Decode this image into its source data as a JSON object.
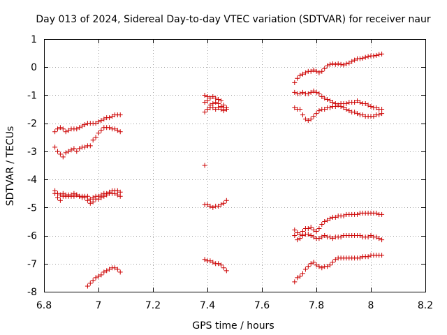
{
  "chart_data": {
    "type": "scatter",
    "title": "Day 013 of 2024, Sidereal Day-to-day VTEC variation (SDTVAR) for receiver naur",
    "xlabel": "GPS time / hours",
    "ylabel": "SDTVAR / TECUs",
    "xlim": [
      6.8,
      8.2
    ],
    "ylim": [
      -8,
      1
    ],
    "xticks": [
      6.8,
      7,
      7.2,
      7.4,
      7.6,
      7.8,
      8,
      8.2
    ],
    "xtick_labels": [
      "6.8",
      "7",
      "7.2",
      "7.4",
      "7.6",
      "7.8",
      "8",
      "8.2"
    ],
    "yticks": [
      -8,
      -7,
      -6,
      -5,
      -4,
      -3,
      -2,
      -1,
      0,
      1
    ],
    "ytick_labels": [
      "-8",
      "-7",
      "-6",
      "-5",
      "-4",
      "-3",
      "-2",
      "-1",
      "0",
      "1"
    ],
    "grid": true,
    "marker": "+",
    "color": "#cc0000",
    "series": [
      {
        "name": "s1",
        "x": [
          6.84,
          6.85,
          6.86,
          6.87,
          6.88,
          6.89,
          6.9,
          6.91,
          6.92,
          6.93,
          6.94,
          6.95,
          6.96,
          6.97,
          6.98,
          6.99,
          7.0,
          7.01,
          7.02,
          7.03,
          7.04,
          7.05,
          7.06,
          7.07,
          7.08
        ],
        "y": [
          -2.3,
          -2.2,
          -2.15,
          -2.2,
          -2.3,
          -2.25,
          -2.2,
          -2.2,
          -2.2,
          -2.15,
          -2.1,
          -2.05,
          -2.0,
          -2.0,
          -2.0,
          -2.0,
          -1.95,
          -1.9,
          -1.85,
          -1.8,
          -1.8,
          -1.75,
          -1.7,
          -1.7,
          -1.7
        ]
      },
      {
        "name": "s2",
        "x": [
          6.84,
          6.85,
          6.86,
          6.87,
          6.88,
          6.89,
          6.9,
          6.91,
          6.92,
          6.93,
          6.94,
          6.95,
          6.96,
          6.97,
          6.98,
          6.99,
          7.0,
          7.01,
          7.02,
          7.03,
          7.04,
          7.05,
          7.06,
          7.07,
          7.08
        ],
        "y": [
          -2.85,
          -3.0,
          -3.1,
          -3.2,
          -3.05,
          -3.0,
          -2.95,
          -2.9,
          -3.0,
          -2.9,
          -2.85,
          -2.85,
          -2.8,
          -2.8,
          -2.6,
          -2.5,
          -2.35,
          -2.25,
          -2.15,
          -2.15,
          -2.15,
          -2.2,
          -2.2,
          -2.25,
          -2.3
        ]
      },
      {
        "name": "s3",
        "x": [
          6.84,
          6.85,
          6.86,
          6.87,
          6.88,
          6.89,
          6.9,
          6.91,
          6.92,
          6.93,
          6.94,
          6.95,
          6.96,
          6.97,
          6.98,
          6.99,
          7.0,
          7.01,
          7.02,
          7.03,
          7.04,
          7.05,
          7.06,
          7.07,
          7.08
        ],
        "y": [
          -4.4,
          -4.5,
          -4.55,
          -4.5,
          -4.6,
          -4.55,
          -4.55,
          -4.5,
          -4.55,
          -4.6,
          -4.6,
          -4.65,
          -4.6,
          -4.7,
          -4.65,
          -4.6,
          -4.6,
          -4.55,
          -4.5,
          -4.5,
          -4.45,
          -4.4,
          -4.4,
          -4.4,
          -4.45
        ]
      },
      {
        "name": "s4",
        "x": [
          6.84,
          6.85,
          6.86,
          6.87,
          6.88,
          6.89,
          6.9,
          6.91,
          6.92,
          6.93,
          6.94,
          6.95,
          6.96,
          6.97,
          6.98,
          6.99,
          7.0,
          7.01,
          7.02,
          7.03,
          7.04,
          7.05,
          7.06,
          7.07,
          7.08
        ],
        "y": [
          -4.5,
          -4.65,
          -4.75,
          -4.6,
          -4.55,
          -4.6,
          -4.6,
          -4.6,
          -4.55,
          -4.6,
          -4.65,
          -4.6,
          -4.75,
          -4.85,
          -4.8,
          -4.7,
          -4.7,
          -4.65,
          -4.6,
          -4.55,
          -4.5,
          -4.5,
          -4.5,
          -4.55,
          -4.6
        ]
      },
      {
        "name": "s5",
        "x": [
          6.96,
          6.97,
          6.98,
          6.99,
          7.0,
          7.01,
          7.02,
          7.03,
          7.04,
          7.05,
          7.06,
          7.07,
          7.08
        ],
        "y": [
          -7.8,
          -7.7,
          -7.6,
          -7.5,
          -7.45,
          -7.4,
          -7.3,
          -7.25,
          -7.2,
          -7.15,
          -7.15,
          -7.2,
          -7.3
        ]
      },
      {
        "name": "s6",
        "x": [
          7.39,
          7.4,
          7.41,
          7.42,
          7.43,
          7.44,
          7.45,
          7.46,
          7.47
        ],
        "y": [
          -1.0,
          -1.05,
          -1.1,
          -1.05,
          -1.1,
          -1.15,
          -1.2,
          -1.35,
          -1.5
        ]
      },
      {
        "name": "s7",
        "x": [
          7.39,
          7.4,
          7.41,
          7.42,
          7.43,
          7.44,
          7.45,
          7.46,
          7.47
        ],
        "y": [
          -1.25,
          -1.2,
          -1.35,
          -1.3,
          -1.25,
          -1.3,
          -1.4,
          -1.45,
          -1.45
        ]
      },
      {
        "name": "s8",
        "x": [
          7.39,
          7.4,
          7.41,
          7.42,
          7.43,
          7.44,
          7.45,
          7.46,
          7.47
        ],
        "y": [
          -1.6,
          -1.5,
          -1.45,
          -1.45,
          -1.5,
          -1.45,
          -1.5,
          -1.55,
          -1.5
        ]
      },
      {
        "name": "s9",
        "x": [
          7.39
        ],
        "y": [
          -3.5
        ]
      },
      {
        "name": "s10",
        "x": [
          7.39,
          7.4,
          7.41,
          7.42,
          7.43,
          7.44,
          7.45,
          7.46,
          7.47
        ],
        "y": [
          -4.9,
          -4.9,
          -4.95,
          -5.0,
          -4.95,
          -4.95,
          -4.9,
          -4.85,
          -4.75
        ]
      },
      {
        "name": "s11",
        "x": [
          7.39,
          7.4,
          7.41,
          7.42,
          7.43,
          7.44,
          7.45,
          7.46,
          7.47
        ],
        "y": [
          -6.85,
          -6.9,
          -6.9,
          -6.95,
          -7.0,
          -7.0,
          -7.05,
          -7.15,
          -7.25
        ]
      },
      {
        "name": "s12",
        "x": [
          7.72,
          7.73,
          7.74,
          7.75,
          7.76,
          7.77,
          7.78,
          7.79,
          7.8,
          7.81,
          7.82,
          7.83,
          7.84,
          7.85,
          7.86,
          7.87,
          7.88,
          7.89,
          7.9,
          7.91,
          7.92,
          7.93,
          7.94,
          7.95,
          7.96,
          7.97,
          7.98,
          7.99,
          8.0,
          8.01,
          8.02,
          8.03,
          8.04
        ],
        "y": [
          -0.55,
          -0.4,
          -0.3,
          -0.25,
          -0.2,
          -0.15,
          -0.15,
          -0.1,
          -0.15,
          -0.2,
          -0.15,
          -0.05,
          0.05,
          0.1,
          0.12,
          0.1,
          0.12,
          0.1,
          0.08,
          0.12,
          0.15,
          0.2,
          0.25,
          0.3,
          0.3,
          0.32,
          0.35,
          0.38,
          0.4,
          0.4,
          0.42,
          0.45,
          0.47
        ]
      },
      {
        "name": "s13",
        "x": [
          7.72,
          7.73,
          7.74,
          7.75,
          7.76,
          7.77,
          7.78,
          7.79,
          7.8,
          7.81,
          7.82,
          7.83,
          7.84,
          7.85,
          7.86,
          7.87,
          7.88,
          7.89,
          7.9,
          7.91,
          7.92,
          7.93,
          7.94,
          7.95,
          7.96,
          7.97,
          7.98,
          7.99,
          8.0,
          8.01,
          8.02,
          8.03,
          8.04
        ],
        "y": [
          -0.9,
          -0.95,
          -0.95,
          -0.9,
          -0.95,
          -0.95,
          -0.9,
          -0.85,
          -0.9,
          -0.95,
          -1.05,
          -1.1,
          -1.15,
          -1.2,
          -1.25,
          -1.3,
          -1.35,
          -1.4,
          -1.45,
          -1.5,
          -1.55,
          -1.6,
          -1.6,
          -1.65,
          -1.7,
          -1.7,
          -1.75,
          -1.75,
          -1.75,
          -1.75,
          -1.7,
          -1.7,
          -1.65
        ]
      },
      {
        "name": "s14",
        "x": [
          7.72,
          7.73,
          7.74,
          7.75,
          7.76,
          7.77,
          7.78,
          7.79,
          7.8,
          7.81,
          7.82,
          7.83,
          7.84,
          7.85,
          7.86,
          7.87,
          7.88,
          7.89,
          7.9,
          7.91,
          7.92,
          7.93,
          7.94,
          7.95,
          7.96,
          7.97,
          7.98,
          7.99,
          8.0,
          8.01,
          8.02,
          8.03,
          8.04
        ],
        "y": [
          -1.45,
          -1.5,
          -1.5,
          -1.7,
          -1.85,
          -1.9,
          -1.85,
          -1.75,
          -1.65,
          -1.55,
          -1.5,
          -1.5,
          -1.45,
          -1.45,
          -1.4,
          -1.4,
          -1.35,
          -1.3,
          -1.3,
          -1.3,
          -1.25,
          -1.25,
          -1.25,
          -1.2,
          -1.25,
          -1.3,
          -1.3,
          -1.35,
          -1.4,
          -1.45,
          -1.45,
          -1.5,
          -1.5
        ]
      },
      {
        "name": "s15",
        "x": [
          7.72,
          7.73,
          7.74,
          7.75,
          7.76,
          7.77,
          7.78,
          7.79,
          7.8,
          7.81,
          7.82,
          7.83,
          7.84,
          7.85,
          7.86,
          7.87,
          7.88,
          7.89,
          7.9,
          7.91,
          7.92,
          7.93,
          7.94,
          7.95,
          7.96,
          7.97,
          7.98,
          7.99,
          8.0,
          8.01,
          8.02,
          8.03,
          8.04
        ],
        "y": [
          -5.8,
          -5.9,
          -5.95,
          -5.85,
          -5.75,
          -5.75,
          -5.7,
          -5.8,
          -5.85,
          -5.75,
          -5.6,
          -5.5,
          -5.45,
          -5.4,
          -5.35,
          -5.35,
          -5.3,
          -5.3,
          -5.3,
          -5.25,
          -5.25,
          -5.25,
          -5.25,
          -5.25,
          -5.2,
          -5.2,
          -5.2,
          -5.2,
          -5.2,
          -5.2,
          -5.2,
          -5.25,
          -5.25
        ]
      },
      {
        "name": "s16",
        "x": [
          7.72,
          7.73,
          7.74,
          7.75,
          7.76,
          7.77,
          7.78,
          7.79,
          7.8,
          7.81,
          7.82,
          7.83,
          7.84,
          7.85,
          7.86,
          7.87,
          7.88,
          7.89,
          7.9,
          7.91,
          7.92,
          7.93,
          7.94,
          7.95,
          7.96,
          7.97,
          7.98,
          7.99,
          8.0,
          8.01,
          8.02,
          8.03,
          8.04
        ],
        "y": [
          -6.0,
          -6.15,
          -6.1,
          -6.0,
          -5.95,
          -5.95,
          -6.0,
          -6.05,
          -6.1,
          -6.1,
          -6.05,
          -6.0,
          -6.05,
          -6.05,
          -6.1,
          -6.05,
          -6.05,
          -6.05,
          -6.0,
          -6.0,
          -6.0,
          -6.0,
          -6.0,
          -6.0,
          -6.0,
          -6.05,
          -6.05,
          -6.05,
          -6.0,
          -6.05,
          -6.05,
          -6.1,
          -6.15
        ]
      },
      {
        "name": "s17",
        "x": [
          7.72,
          7.73,
          7.74,
          7.75,
          7.76,
          7.77,
          7.78,
          7.79,
          7.8,
          7.81,
          7.82,
          7.83,
          7.84,
          7.85,
          7.86,
          7.87,
          7.88,
          7.89,
          7.9,
          7.91,
          7.92,
          7.93,
          7.94,
          7.95,
          7.96,
          7.97,
          7.98,
          7.99,
          8.0,
          8.01,
          8.02,
          8.03,
          8.04
        ],
        "y": [
          -7.65,
          -7.5,
          -7.45,
          -7.35,
          -7.2,
          -7.1,
          -7.0,
          -6.95,
          -7.05,
          -7.1,
          -7.15,
          -7.1,
          -7.1,
          -7.05,
          -6.95,
          -6.85,
          -6.8,
          -6.8,
          -6.8,
          -6.8,
          -6.8,
          -6.8,
          -6.8,
          -6.8,
          -6.8,
          -6.75,
          -6.75,
          -6.75,
          -6.7,
          -6.7,
          -6.7,
          -6.7,
          -6.7
        ]
      }
    ]
  }
}
